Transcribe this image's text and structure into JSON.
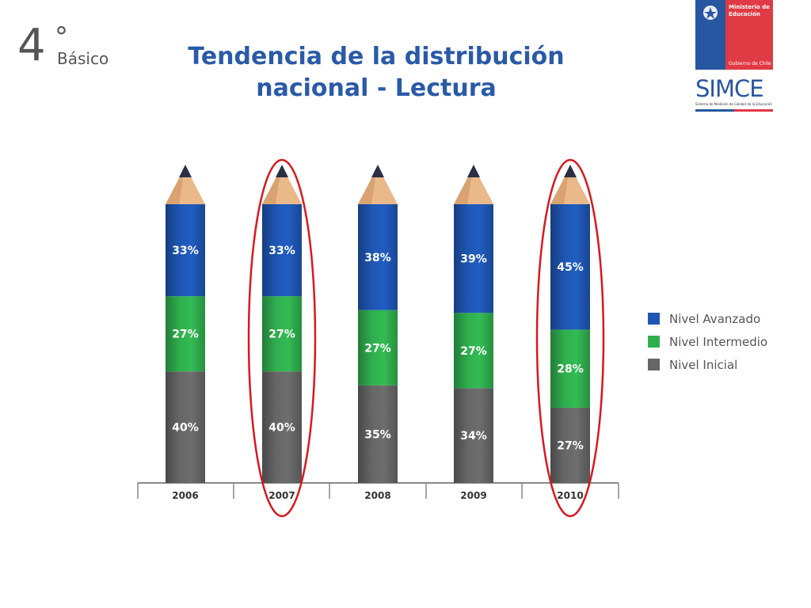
{
  "slide": {
    "grade_number": "4",
    "grade_degree": "°",
    "grade_label": "Básico",
    "title_line1": "Tendencia de la distribución",
    "title_line2": "nacional - Lectura"
  },
  "logos": {
    "ministry_line1": "Ministerio de",
    "ministry_line2": "Educación",
    "ministry_footer": "Gobierno de Chile",
    "simce_word": "SIMCE",
    "simce_sub": "Sistema de Medición de Calidad de la Educación"
  },
  "colors": {
    "avanzado": "#1f56b3",
    "intermedio": "#2fae4e",
    "inicial": "#666666",
    "highlight": "#d71920",
    "title": "#2a5aa8"
  },
  "chart_data": {
    "type": "bar",
    "stacked": true,
    "categories": [
      "2006",
      "2007",
      "2008",
      "2009",
      "2010"
    ],
    "series": [
      {
        "name": "Nivel Inicial",
        "values": [
          40,
          40,
          35,
          34,
          27
        ]
      },
      {
        "name": "Nivel Intermedio",
        "values": [
          27,
          27,
          27,
          27,
          28
        ]
      },
      {
        "name": "Nivel Avanzado",
        "values": [
          33,
          33,
          38,
          39,
          45
        ]
      }
    ],
    "value_suffix": "%",
    "highlighted_categories": [
      "2007",
      "2010"
    ],
    "legend_order": [
      "Nivel Avanzado",
      "Nivel Intermedio",
      "Nivel Inicial"
    ],
    "legend_position": "right",
    "grid": false,
    "ylim": [
      0,
      100
    ]
  }
}
